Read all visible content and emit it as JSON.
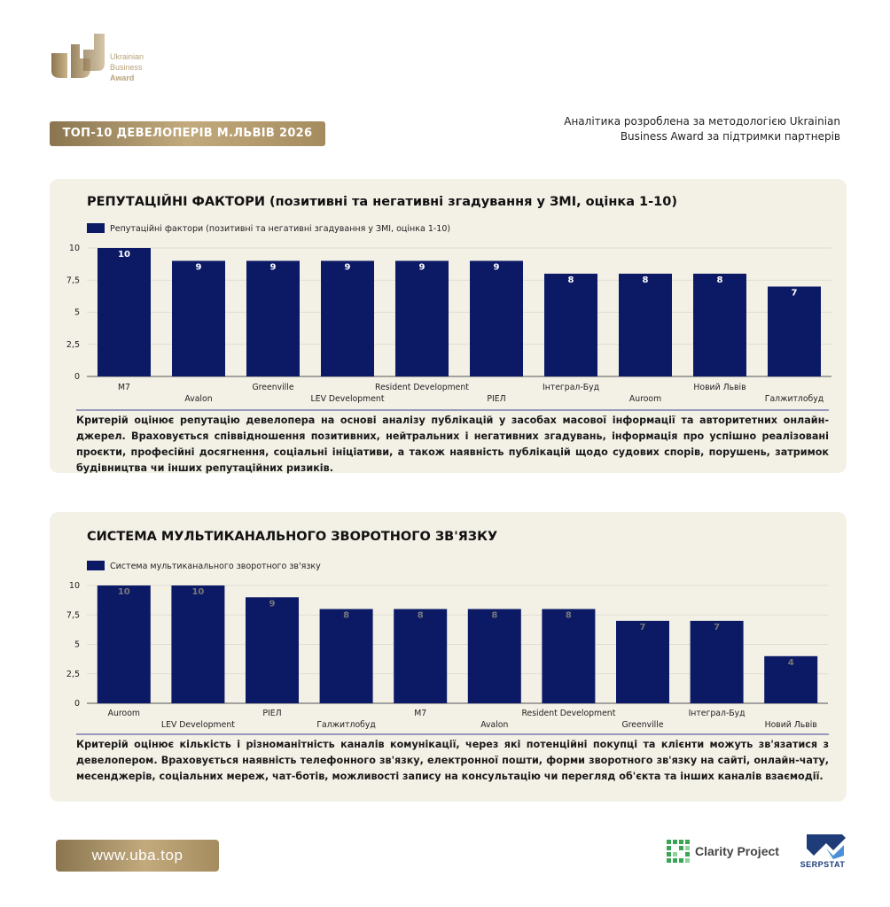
{
  "logo": {
    "line1": "Ukrainian",
    "line2": "Business",
    "line3": "Award",
    "logo_icon": "uba-logo-icon"
  },
  "header": {
    "badge": "ТОП-10 ДЕВЕЛОПЕРІВ М.ЛЬВІВ 2026",
    "methodology_line1": "Аналітика розроблена за методологією Ukrainian",
    "methodology_line2": "Business Award за підтримки партнерів"
  },
  "colors": {
    "bar": "#0c1a66",
    "card_bg": "#f3f0e6",
    "gold": "#b9a37a",
    "divider": "#3a4390"
  },
  "chart_data": [
    {
      "type": "bar",
      "title": "РЕПУТАЦІЙНІ ФАКТОРИ (позитивні та негативні згадування у ЗМІ, оцінка 1-10)",
      "legend": "Репутаційні фактори (позитивні та негативні згадування у ЗМІ, оцінка 1-10)",
      "legend_position": "top-left",
      "categories": [
        "M7",
        "Avalon",
        "Greenville",
        "LEV Development",
        "Resident Development",
        "РІЕЛ",
        "Інтеграл-Буд",
        "Auroom",
        "Новий Львів",
        "Галжитлобуд"
      ],
      "values": [
        10,
        9,
        9,
        9,
        9,
        9,
        8,
        8,
        8,
        7
      ],
      "yticks": [
        "0",
        "2,5",
        "5",
        "7,5",
        "10"
      ],
      "ylim": [
        0,
        10
      ],
      "grid": true,
      "label_color": "#ffffff",
      "description": "Критерій оцінює репутацію девелопера на основі аналізу публікацій у засобах масової інформації та авторитетних онлайн-джерел. Враховується співвідношення позитивних, нейтральних і негативних згадувань, інформація про успішно реалізовані проєкти, професійні досягнення, соціальні ініціативи, а також наявність публікацій щодо судових спорів, порушень, затримок будівництва чи інших репутаційних ризиків."
    },
    {
      "type": "bar",
      "title": "СИСТЕМА МУЛЬТИКАНАЛЬНОГО ЗВОРОТНОГО ЗВ'ЯЗКУ",
      "legend": "Система мультиканального зворотного зв'язку",
      "legend_position": "top-left",
      "categories": [
        "Auroom",
        "LEV Development",
        "РІЕЛ",
        "Галжитлобуд",
        "M7",
        "Avalon",
        "Resident Development",
        "Greenville",
        "Інтеграл-Буд",
        "Новий Львів"
      ],
      "values": [
        10,
        10,
        9,
        8,
        8,
        8,
        8,
        7,
        7,
        4
      ],
      "yticks": [
        "0",
        "2,5",
        "5",
        "7,5",
        "10"
      ],
      "ylim": [
        0,
        10
      ],
      "grid": true,
      "label_color": "#777777",
      "description": "Критерій оцінює кількість і різноманітність каналів комунікації, через які потенційні покупці та клієнти можуть зв'язатися з девелопером. Враховується наявність телефонного зв'язку, електронної пошти, форми зворотного зв'язку на сайті, онлайн-чату, месенджерів, соціальних мереж, чат-ботів, можливості запису на консультацію чи перегляд об'єкта та інших каналів взаємодії."
    }
  ],
  "footer": {
    "site": "www.uba.top",
    "partner1": "Clarity Project",
    "partner1_icon": "clarity-project-icon",
    "partner2": "SERPSTAT",
    "partner2_icon": "serpstat-icon"
  }
}
